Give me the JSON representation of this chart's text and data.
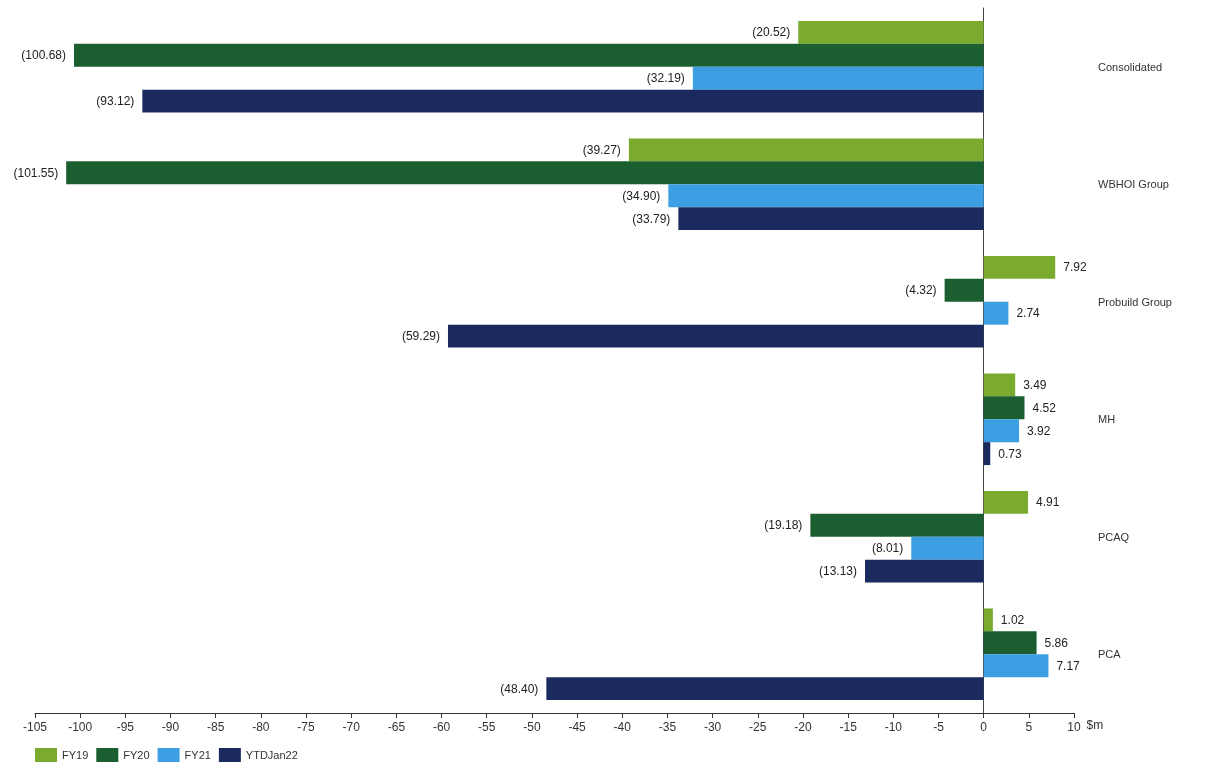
{
  "chart_data": {
    "type": "bar",
    "orientation": "horizontal",
    "xlabel": "$m",
    "categories": [
      "Consolidated",
      "WBHOI Group",
      "Probuild Group",
      "MH",
      "PCAQ",
      "PCA"
    ],
    "series": [
      {
        "name": "FY19",
        "color": "#7aab2e",
        "values": [
          -20.52,
          -39.27,
          7.92,
          3.49,
          4.91,
          1.02
        ],
        "value_labels": [
          "(20.52)",
          "(39.27)",
          "7.92",
          "3.49",
          "4.91",
          "1.02"
        ]
      },
      {
        "name": "FY20",
        "color": "#1b5e30",
        "values": [
          -100.68,
          -101.55,
          -4.32,
          4.52,
          -19.18,
          5.86
        ],
        "value_labels": [
          "(100.68)",
          "(101.55)",
          "(4.32)",
          "4.52",
          "(19.18)",
          "5.86"
        ]
      },
      {
        "name": "FY21",
        "color": "#3d9fe3",
        "values": [
          -32.19,
          -34.9,
          2.74,
          3.92,
          -8.01,
          7.17
        ],
        "value_labels": [
          "(32.19)",
          "(34.90)",
          "2.74",
          "3.92",
          "(8.01)",
          "7.17"
        ]
      },
      {
        "name": "YTDJan22",
        "color": "#1b2a5e",
        "values": [
          -93.12,
          -33.79,
          -59.29,
          0.73,
          -13.13,
          -48.4
        ],
        "value_labels": [
          "(93.12)",
          "(33.79)",
          "(59.29)",
          "0.73",
          "(13.13)",
          "(48.40)"
        ]
      }
    ],
    "xlim": [
      -105,
      10
    ],
    "xticks": [
      -105,
      -100,
      -95,
      -90,
      -85,
      -80,
      -75,
      -70,
      -65,
      -60,
      -55,
      -50,
      -45,
      -40,
      -35,
      -30,
      -25,
      -20,
      -15,
      -10,
      -5,
      0,
      5,
      10
    ],
    "legend": "bottom left"
  }
}
